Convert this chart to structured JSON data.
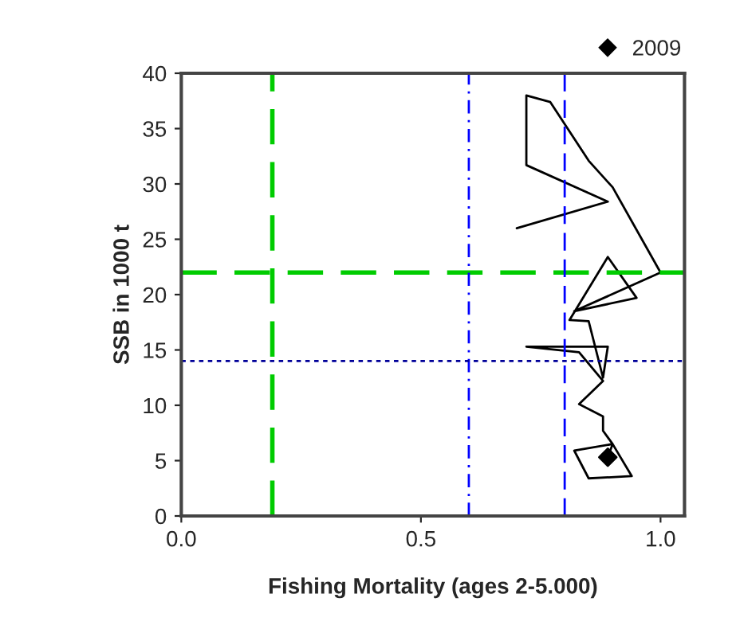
{
  "chart_data": {
    "type": "line",
    "xlabel": "Fishing Mortality (ages 2-5.000)",
    "ylabel": "SSB in 1000 t",
    "xlim": [
      0,
      1.05
    ],
    "xticks": [
      {
        "value": 0,
        "label": "0.0"
      },
      {
        "value": 0.5,
        "label": "0.5"
      },
      {
        "value": 1,
        "label": "1.0"
      }
    ],
    "ylim": [
      0,
      40
    ],
    "yticks": [
      0,
      5,
      10,
      15,
      20,
      25,
      30,
      35,
      40
    ],
    "grid": false,
    "legend": "top right",
    "series": [
      {
        "color": "#000000",
        "x": [
          0.7,
          0.89,
          0.72,
          0.72,
          0.77,
          0.85,
          0.9,
          1.0,
          0.82,
          0.95,
          0.89,
          0.81,
          0.85,
          0.88,
          0.89,
          0.72,
          0.83,
          0.88,
          0.83,
          0.88,
          0.88,
          0.9,
          0.94,
          0.85,
          0.82,
          0.9,
          0.89
        ],
        "values": [
          26.0,
          28.4,
          31.7,
          38.0,
          37.4,
          32.1,
          29.7,
          22.0,
          18.5,
          19.7,
          23.4,
          17.7,
          17.6,
          12.5,
          15.3,
          15.3,
          14.8,
          12.2,
          10.1,
          9.0,
          7.7,
          6.5,
          3.6,
          3.4,
          5.9,
          6.5,
          5.3
        ]
      },
      {
        "type": "scatter",
        "name": "2009",
        "color": "#000000",
        "marker": "diamond",
        "x": [
          0.89
        ],
        "values": [
          5.3
        ]
      }
    ],
    "ref_lines": [
      {
        "axis": "x",
        "value": 0.19,
        "color": "#00cc00",
        "line_style": "dashed"
      },
      {
        "axis": "y",
        "value": 22,
        "color": "#00cc00",
        "line_style": "dashed"
      },
      {
        "axis": "x",
        "value": 0.6,
        "color": "#0000ff",
        "line_style": "dashdot"
      },
      {
        "axis": "x",
        "value": 0.8,
        "color": "#0000ff",
        "line_style": "dashed"
      },
      {
        "axis": "y",
        "value": 14,
        "color": "#000099",
        "line_style": "dotted"
      }
    ]
  }
}
